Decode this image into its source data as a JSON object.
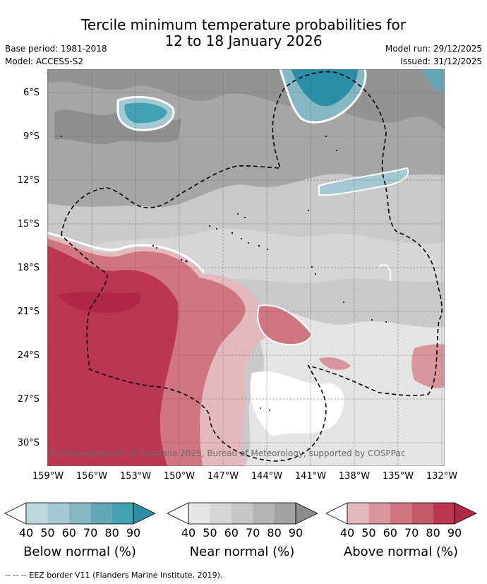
{
  "title": {
    "line1": "Tercile minimum temperature probabilities for",
    "line2": "12 to 18 January 2026"
  },
  "meta": {
    "base_period": "Base period: 1981-2018",
    "model": "Model: ACCESS-S2",
    "model_run": "Model run: 29/12/2025",
    "issued": "Issued: 31/12/2025"
  },
  "axes": {
    "lat_labels": [
      "6°S",
      "9°S",
      "12°S",
      "15°S",
      "18°S",
      "21°S",
      "24°S",
      "27°S",
      "30°S"
    ],
    "lon_labels": [
      "159°W",
      "156°W",
      "153°W",
      "150°W",
      "147°W",
      "144°W",
      "141°W",
      "138°W",
      "135°W",
      "132°W"
    ]
  },
  "copyright": "© Commonwealth of Australia 2025, Bureau of Meteorology, supported by COSPPac",
  "legends": [
    {
      "title": "Below normal (%)",
      "ticks": [
        "40",
        "50",
        "60",
        "70",
        "80",
        "90"
      ],
      "colors": [
        "#bcd7de",
        "#a3c9d2",
        "#86b7c4",
        "#66a7b6",
        "#42a1b2",
        "#2a8ea6"
      ]
    },
    {
      "title": "Near normal (%)",
      "ticks": [
        "40",
        "50",
        "60",
        "70",
        "80",
        "90"
      ],
      "colors": [
        "#e6e6e6",
        "#d6d6d6",
        "#c6c6c6",
        "#b4b4b4",
        "#a2a2a2",
        "#8c8c8c"
      ]
    },
    {
      "title": "Above normal (%)",
      "ticks": [
        "40",
        "50",
        "60",
        "70",
        "80",
        "90"
      ],
      "colors": [
        "#e4b9be",
        "#d8959c",
        "#cf7680",
        "#c65968",
        "#bb3650",
        "#b02845"
      ]
    }
  ],
  "footnote": "--  --  -- EEZ border V11 (Flanders Marine Institute, 2019)."
}
